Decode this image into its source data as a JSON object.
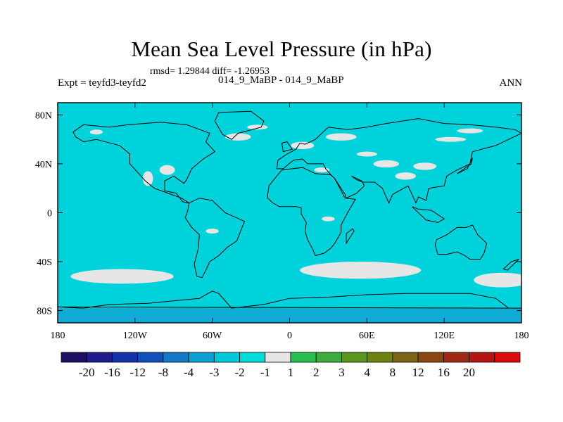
{
  "chart_data": {
    "type": "heatmap",
    "title": "Mean Sea Level Pressure (in hPa)",
    "stats_text": "rmsd= 1.29844 diff= -1.26953",
    "left_label": "Expt = teyfd3-teyfd2",
    "center_label": "014_9_MaBP - 014_9_MaBP",
    "right_label": "ANN",
    "x_range": [
      -180,
      180
    ],
    "y_range": [
      -90,
      90
    ],
    "x_ticks": [
      {
        "value": -180,
        "label": "180"
      },
      {
        "value": -120,
        "label": "120W"
      },
      {
        "value": -60,
        "label": "60W"
      },
      {
        "value": 0,
        "label": "0"
      },
      {
        "value": 60,
        "label": "60E"
      },
      {
        "value": 120,
        "label": "120E"
      },
      {
        "value": 180,
        "label": "180"
      }
    ],
    "y_ticks": [
      {
        "value": 80,
        "label": "80N"
      },
      {
        "value": 40,
        "label": "40N"
      },
      {
        "value": 0,
        "label": "0"
      },
      {
        "value": -40,
        "label": "40S"
      },
      {
        "value": -80,
        "label": "80S"
      }
    ],
    "background_level": "-2 to -1",
    "colorbar": {
      "colors": [
        "#1e0f64",
        "#1c1c8c",
        "#1432aa",
        "#1450bc",
        "#1478c8",
        "#0fa0d2",
        "#00c8dc",
        "#00dcdc",
        "#e6e6e6",
        "#28be50",
        "#3caa3c",
        "#5a961e",
        "#6e8214",
        "#7d6414",
        "#8c4614",
        "#a02814",
        "#b41414",
        "#dc0a0a"
      ],
      "labels": [
        "-20",
        "-16",
        "-12",
        "-8",
        "-4",
        "-3",
        "-2",
        "-1",
        "1",
        "2",
        "3",
        "4",
        "8",
        "12",
        "16",
        "20"
      ]
    },
    "background_color": "#00d2dc",
    "positive_small_color": "#e6e6e6",
    "negative_color": "#14a0d2",
    "features": [
      {
        "name": "south-pacific-positive-blob",
        "level": "-1 to 1",
        "lon": -130,
        "lat": -52,
        "rx_deg": 40,
        "ry_deg": 6
      },
      {
        "name": "south-indian-positive-blob",
        "level": "-1 to 1",
        "lon": 55,
        "lat": -47,
        "rx_deg": 47,
        "ry_deg": 7
      },
      {
        "name": "southeast-pacific-positive-blob",
        "level": "-1 to 1",
        "lon": 165,
        "lat": -55,
        "rx_deg": 22,
        "ry_deg": 6
      },
      {
        "name": "antarctic-negative-band",
        "level": "-3 to -2",
        "lat_from": -90,
        "lat_to": -78
      },
      {
        "name": "antarctic-deep-negative-band",
        "level": "-4 to -3",
        "lat_from": -90,
        "lat_to": -84
      }
    ]
  }
}
